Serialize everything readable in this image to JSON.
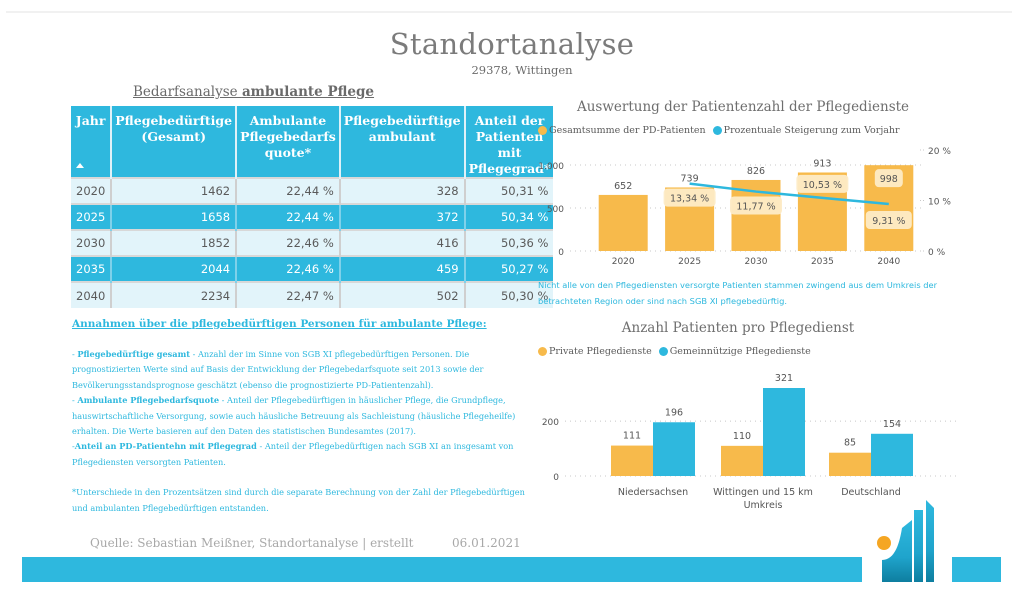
{
  "header": {
    "title": "Standortanalyse",
    "subtitle": "29378, Wittingen"
  },
  "section": {
    "title_prefix": "Bedarfsanalyse ",
    "title_bold": "ambulante Pflege"
  },
  "table": {
    "columns": [
      "Jahr",
      "Pflegebedürftige (Gesamt)",
      "Ambulante Pflegebedarfs quote*",
      "Pflegebedürftige ambulant",
      "Anteil der Patienten mit Pflegegrad*"
    ],
    "sort_icon": "sort-ascending-icon",
    "rows": [
      [
        "2020",
        "1462",
        "22,44 %",
        "328",
        "50,31 %"
      ],
      [
        "2025",
        "1658",
        "22,44 %",
        "372",
        "50,34 %"
      ],
      [
        "2030",
        "1852",
        "22,46 %",
        "416",
        "50,36 %"
      ],
      [
        "2035",
        "2044",
        "22,46 %",
        "459",
        "50,27 %"
      ],
      [
        "2040",
        "2234",
        "22,47 %",
        "502",
        "50,30 %"
      ]
    ]
  },
  "assumptions": {
    "title": "Annahmen über die pflegebedürftigen Personen für ambulante Pflege:",
    "items": [
      {
        "prefix": "- ",
        "term": "Pflegebedürftige gesamt",
        "text": " - Anzahl der im Sinne von SGB XI pflegebedürftigen Personen. Die prognostizierten Werte sind auf Basis der Entwicklung der Pflegebedarfsquote seit 2013 sowie der Bevölkerungsstandsprognose geschätzt (ebenso die prognostizierte PD-Patientenzahl)."
      },
      {
        "prefix": "- ",
        "term": "Ambulante Pflegebedarfsquote",
        "text": " - Anteil der Pflegebedürftigen in häuslicher Pflege, die Grundpflege, hauswirtschaftliche Versorgung, sowie auch häusliche Betreuung als Sachleistung (häusliche Pflegeheilfe) erhalten. Die Werte basieren auf den Daten des statistischen Bundesamtes (2017)."
      },
      {
        "prefix": "-",
        "term": "Anteil an PD-Patientehn mit Pflegegrad",
        "text": " - Anteil der Pflegebedürftigen nach SGB XI an insgesamt von Pflegediensten versorgten Patienten."
      }
    ],
    "footnote": "*Unterschiede in den Prozentsätzen sind durch die separate Berechnung von der Zahl der Pflegebedürftigen und ambulanten Pflegebedürftigen entstanden."
  },
  "footer": {
    "source": "Quelle: Sebastian Meißner, Standortanalyse | erstellt",
    "date": "06.01.2021",
    "logo": "company-logo"
  },
  "colors": {
    "accent_blue": "#2eb8de",
    "accent_orange": "#f7ba4b",
    "label_bg": "#fdebc6"
  },
  "note": "Nicht alle von den Pflegediensten versorgte Patienten stammen zwingend aus dem Umkreis der betrachteten Region oder sind nach SGB XI pflegebedürftig.",
  "chart_data": [
    {
      "type": "bar",
      "title": "Auswertung der Patientenzahl der Pflegedienste",
      "categories": [
        "2020",
        "2025",
        "2030",
        "2035",
        "2040"
      ],
      "series": [
        {
          "name": "Gesamtsumme der PD-Patienten",
          "type": "bar",
          "axis": "left",
          "color": "#f7ba4b",
          "values": [
            652,
            739,
            826,
            913,
            998
          ],
          "labels": [
            "652",
            "739",
            "826",
            "913",
            "998"
          ]
        },
        {
          "name": "Prozentuale Steigerung zum Vorjahr",
          "type": "line",
          "axis": "right",
          "color": "#2eb8de",
          "values": [
            null,
            13.34,
            11.77,
            10.53,
            9.31
          ],
          "labels": [
            "",
            "13,34 %",
            "11,77 %",
            "10,53 %",
            "9,31 %"
          ]
        }
      ],
      "y_left": {
        "ticks": [
          0,
          500,
          1000
        ],
        "tick_labels": [
          "0",
          "500",
          "1.000"
        ],
        "range": [
          0,
          1000
        ]
      },
      "y_right": {
        "ticks": [
          0,
          10,
          20
        ],
        "tick_labels": [
          "0 %",
          "10 %",
          "20 %"
        ],
        "range": [
          0,
          20
        ]
      },
      "legend": "top-left",
      "grid": true
    },
    {
      "type": "bar",
      "title": "Anzahl Patienten pro Pflegedienst",
      "categories": [
        "Niedersachsen",
        "Wittingen und 15 km Umkreis",
        "Deutschland"
      ],
      "category_lines": [
        [
          "Niedersachsen"
        ],
        [
          "Wittingen und 15 km",
          "Umkreis"
        ],
        [
          "Deutschland"
        ]
      ],
      "series": [
        {
          "name": "Private Pflegedienste",
          "color": "#f7ba4b",
          "values": [
            111,
            110,
            85
          ]
        },
        {
          "name": "Gemeinnützige Pflegedienste",
          "color": "#2eb8de",
          "values": [
            196,
            321,
            154
          ]
        }
      ],
      "y": {
        "ticks": [
          0,
          200
        ],
        "tick_labels": [
          "0",
          "200"
        ],
        "range": [
          0,
          321
        ]
      },
      "legend": "top-left",
      "grid": true
    }
  ]
}
